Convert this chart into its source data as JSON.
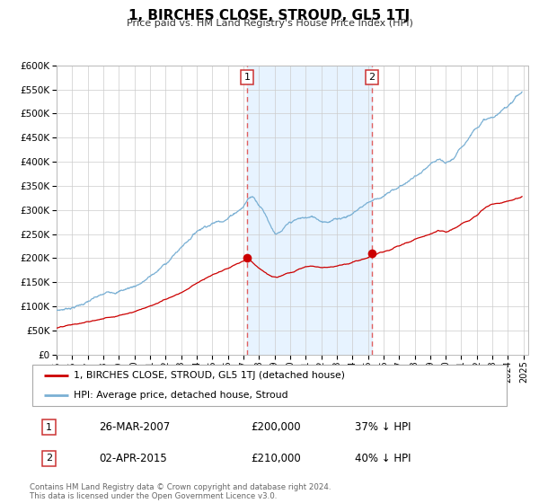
{
  "title": "1, BIRCHES CLOSE, STROUD, GL5 1TJ",
  "subtitle": "Price paid vs. HM Land Registry's House Price Index (HPI)",
  "background_color": "#ffffff",
  "plot_bg_color": "#ffffff",
  "grid_color": "#cccccc",
  "ylim": [
    0,
    600000
  ],
  "yticks": [
    0,
    50000,
    100000,
    150000,
    200000,
    250000,
    300000,
    350000,
    400000,
    450000,
    500000,
    550000,
    600000
  ],
  "xlim_start": 1995.0,
  "xlim_end": 2025.3,
  "sale1_x": 2007.23,
  "sale1_y": 200000,
  "sale2_x": 2015.25,
  "sale2_y": 210000,
  "vline_color": "#e06060",
  "sale_dot_color": "#cc0000",
  "sale_dot_size": 7,
  "hpi_fill_color": "#ddeeff",
  "hpi_line_color": "#7ab0d4",
  "price_line_color": "#cc0000",
  "legend_label_price": "1, BIRCHES CLOSE, STROUD, GL5 1TJ (detached house)",
  "legend_label_hpi": "HPI: Average price, detached house, Stroud",
  "annotation1_date": "26-MAR-2007",
  "annotation1_price": "£200,000",
  "annotation1_hpi": "37% ↓ HPI",
  "annotation2_date": "02-APR-2015",
  "annotation2_price": "£210,000",
  "annotation2_hpi": "40% ↓ HPI",
  "footer": "Contains HM Land Registry data © Crown copyright and database right 2024.\nThis data is licensed under the Open Government Licence v3.0.",
  "xtick_years": [
    1995,
    1996,
    1997,
    1998,
    1999,
    2000,
    2001,
    2002,
    2003,
    2004,
    2005,
    2006,
    2007,
    2008,
    2009,
    2010,
    2011,
    2012,
    2013,
    2014,
    2015,
    2016,
    2017,
    2018,
    2019,
    2020,
    2021,
    2022,
    2023,
    2024,
    2025
  ],
  "badge_color": "#cc3333"
}
